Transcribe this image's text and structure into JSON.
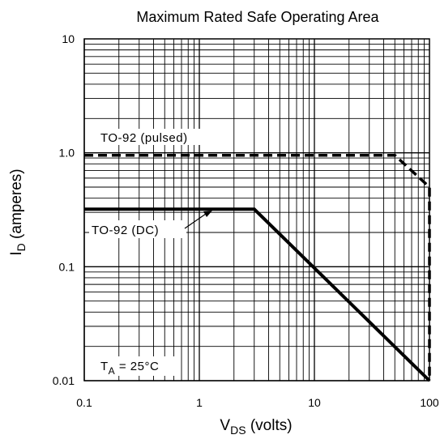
{
  "chart_data": {
    "type": "line",
    "title": "Maximum Rated Safe Operating Area",
    "xlabel": {
      "main": "V",
      "sub": "DS",
      "suffix": " (volts)"
    },
    "ylabel": {
      "main": "I",
      "sub": "D",
      "suffix": " (amperes)"
    },
    "xscale": "log",
    "yscale": "log",
    "xlim": [
      0.1,
      100
    ],
    "ylim": [
      0.01,
      10
    ],
    "grid": true,
    "x_ticks": [
      {
        "value": 0.1,
        "label": "0.1"
      },
      {
        "value": 1,
        "label": "1"
      },
      {
        "value": 10,
        "label": "10"
      },
      {
        "value": 100,
        "label": "100"
      }
    ],
    "y_ticks": [
      {
        "value": 0.01,
        "label": "0.01"
      },
      {
        "value": 0.1,
        "label": "0.1"
      },
      {
        "value": 1,
        "label": "1.0"
      },
      {
        "value": 10,
        "label": "10"
      }
    ],
    "series": [
      {
        "name": "TO-92 (pulsed)",
        "style": "dashed",
        "x": [
          0.1,
          50,
          100,
          100
        ],
        "y": [
          0.95,
          0.95,
          0.5,
          0.01
        ]
      },
      {
        "name": "TO-92 (DC)",
        "style": "solid",
        "x": [
          0.1,
          3,
          100
        ],
        "y": [
          0.32,
          0.32,
          0.01
        ]
      }
    ],
    "annotations": {
      "temperature": {
        "main": "T",
        "sub": "A",
        "suffix": " = 25°C"
      }
    },
    "colors": {
      "line": "#000000",
      "grid": "#000000",
      "background": "#ffffff"
    }
  }
}
